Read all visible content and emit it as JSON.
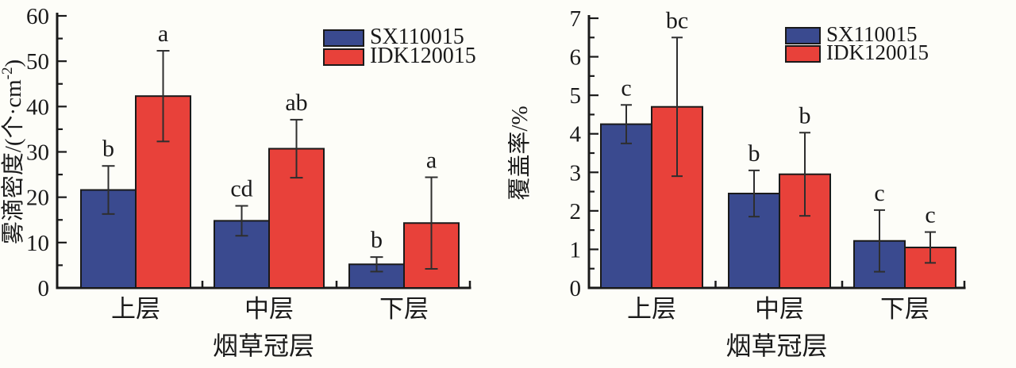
{
  "figure": {
    "background": "#fdfdf8",
    "text_color": "#1a1a1a"
  },
  "chart_data": [
    {
      "type": "bar",
      "title": "",
      "xlabel": "烟草冠层",
      "ylabel": "雾滴密度/(个·cm⁻²)",
      "ylabel_parts": [
        {
          "t": "雾滴密度/(个·cm"
        },
        {
          "t": "-2",
          "sup": true
        },
        {
          "t": ")"
        }
      ],
      "categories": [
        "上层",
        "中层",
        "下层"
      ],
      "series": [
        {
          "name": "SX110015",
          "color": "#3a4a8f",
          "values": [
            21.6,
            14.8,
            5.2
          ],
          "errors": [
            5.3,
            3.3,
            1.6
          ],
          "letters": [
            "b",
            "cd",
            "b"
          ]
        },
        {
          "name": "IDK120015",
          "color": "#e8413a",
          "values": [
            42.3,
            30.7,
            14.3
          ],
          "errors": [
            10.0,
            6.4,
            10.1
          ],
          "letters": [
            "a",
            "ab",
            "a"
          ]
        }
      ],
      "ylim": [
        0,
        60
      ],
      "ytick_step": 10,
      "yminor_step": 5,
      "ytick_labels": [
        "0",
        "10",
        "20",
        "30",
        "40",
        "50",
        "60"
      ],
      "legend_position": "top-right",
      "grid": false
    },
    {
      "type": "bar",
      "title": "",
      "xlabel": "烟草冠层",
      "ylabel": "覆盖率/%",
      "ylabel_parts": [
        {
          "t": "覆盖率/%"
        }
      ],
      "categories": [
        "上层",
        "中层",
        "下层"
      ],
      "series": [
        {
          "name": "SX110015",
          "color": "#3a4a8f",
          "values": [
            4.25,
            2.45,
            1.22
          ],
          "errors": [
            0.5,
            0.6,
            0.8
          ],
          "letters": [
            "c",
            "b",
            "c"
          ]
        },
        {
          "name": "IDK120015",
          "color": "#e8413a",
          "values": [
            4.7,
            2.95,
            1.05
          ],
          "errors": [
            1.8,
            1.08,
            0.4
          ],
          "letters": [
            "bc",
            "b",
            "c"
          ]
        }
      ],
      "ylim": [
        0,
        7
      ],
      "ytick_step": 1,
      "yminor_step": 0.5,
      "ytick_labels": [
        "0",
        "1",
        "2",
        "3",
        "4",
        "5",
        "6",
        "7"
      ],
      "legend_position": "top-right",
      "grid": false
    }
  ]
}
